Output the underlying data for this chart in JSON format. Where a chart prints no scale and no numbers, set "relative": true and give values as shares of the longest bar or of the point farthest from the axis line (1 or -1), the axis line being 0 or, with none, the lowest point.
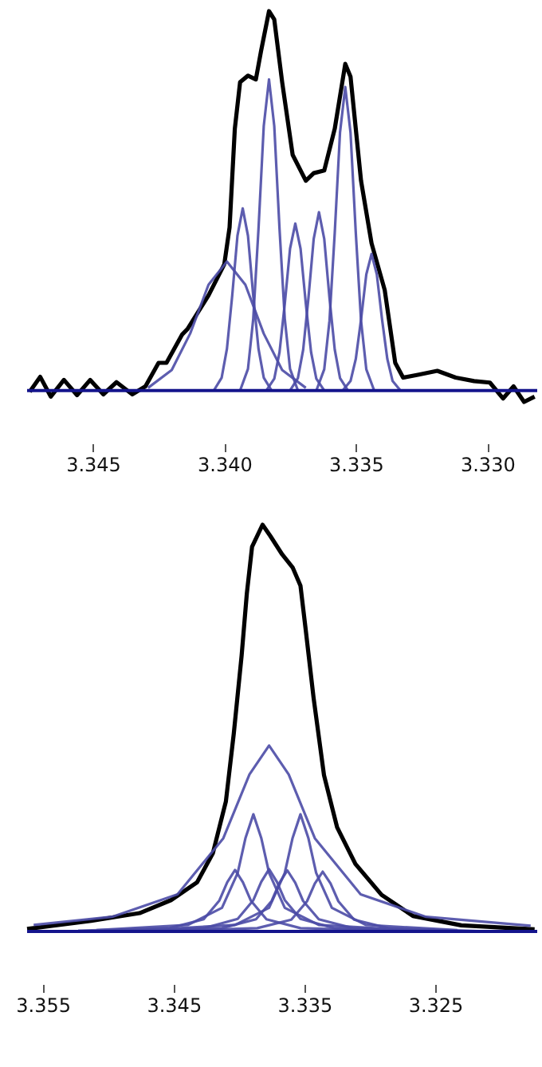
{
  "chart_data": [
    {
      "type": "line",
      "relative": true,
      "xlim": [
        3.3475,
        3.3281
      ],
      "xticks": [
        {
          "value": 3.345,
          "label": "3.345"
        },
        {
          "value": 3.34,
          "label": "3.340"
        },
        {
          "value": 3.335,
          "label": "3.335"
        },
        {
          "value": 3.33,
          "label": "3.330"
        }
      ],
      "ref_lines": [
        {
          "axis": "y",
          "value": 0,
          "color": "#14148c"
        }
      ],
      "series": [
        {
          "color": "#000000",
          "x": [
            3.3474,
            3.347,
            3.3466,
            3.3461,
            3.3456,
            3.3451,
            3.3446,
            3.3441,
            3.3435,
            3.343,
            3.3425,
            3.3422,
            3.3416,
            3.3414,
            3.3406,
            3.34,
            3.3398,
            3.3396,
            3.3394,
            3.3391,
            3.3388,
            3.3386,
            3.3383,
            3.3381,
            3.3378,
            3.3374,
            3.3369,
            3.3366,
            3.3362,
            3.3358,
            3.3354,
            3.3352,
            3.3348,
            3.3344,
            3.3339,
            3.3335,
            3.3332,
            3.3326,
            3.3319,
            3.3312,
            3.3305,
            3.3299,
            3.3294,
            3.329,
            3.3286,
            3.3282
          ],
          "values": [
            -0.003,
            0.036,
            -0.016,
            0.028,
            -0.012,
            0.028,
            -0.01,
            0.022,
            -0.01,
            0.011,
            0.073,
            0.073,
            0.148,
            0.162,
            0.251,
            0.333,
            0.43,
            0.69,
            0.813,
            0.83,
            0.82,
            0.896,
            1.0,
            0.978,
            0.813,
            0.621,
            0.553,
            0.573,
            0.58,
            0.69,
            0.861,
            0.827,
            0.553,
            0.388,
            0.265,
            0.073,
            0.034,
            0.042,
            0.052,
            0.034,
            0.025,
            0.021,
            -0.021,
            0.011,
            -0.03,
            -0.016
          ]
        },
        {
          "color": "#4b4ba6",
          "x": [
            3.3429,
            3.342,
            3.3413,
            3.3406,
            3.3399,
            3.3392,
            3.3385,
            3.3378,
            3.3369
          ],
          "values": [
            0.007,
            0.054,
            0.15,
            0.279,
            0.34,
            0.279,
            0.15,
            0.054,
            0.007
          ]
        },
        {
          "color": "#4b4ba6",
          "x": [
            3.3404,
            3.3401,
            3.3399,
            3.3397,
            3.3395,
            3.3393,
            3.3391,
            3.3389,
            3.3387,
            3.3385,
            3.3382
          ],
          "values": [
            0,
            0.034,
            0.11,
            0.25,
            0.408,
            0.48,
            0.408,
            0.25,
            0.11,
            0.034,
            0
          ]
        },
        {
          "color": "#4b4ba6",
          "x": [
            3.3394,
            3.3391,
            3.3389,
            3.3387,
            3.3385,
            3.3383,
            3.3381,
            3.3379,
            3.3377,
            3.3375,
            3.3372
          ],
          "values": [
            0,
            0.057,
            0.189,
            0.426,
            0.697,
            0.82,
            0.697,
            0.426,
            0.189,
            0.057,
            0
          ]
        },
        {
          "color": "#4b4ba6",
          "x": [
            3.3384,
            3.3381,
            3.3379,
            3.3377,
            3.3375,
            3.3373,
            3.3371,
            3.3369,
            3.3367,
            3.3365,
            3.3362
          ],
          "values": [
            0,
            0.031,
            0.101,
            0.229,
            0.374,
            0.44,
            0.374,
            0.229,
            0.101,
            0.031,
            0
          ]
        },
        {
          "color": "#4b4ba6",
          "x": [
            3.3375,
            3.3372,
            3.337,
            3.3368,
            3.3366,
            3.3364,
            3.3362,
            3.336,
            3.3358,
            3.3356,
            3.3353
          ],
          "values": [
            0,
            0.033,
            0.108,
            0.244,
            0.4,
            0.47,
            0.4,
            0.244,
            0.108,
            0.033,
            0
          ]
        },
        {
          "color": "#4b4ba6",
          "x": [
            3.3365,
            3.3362,
            3.336,
            3.3358,
            3.3356,
            3.3354,
            3.3352,
            3.335,
            3.3348,
            3.3346,
            3.3343
          ],
          "values": [
            0,
            0.056,
            0.184,
            0.416,
            0.68,
            0.8,
            0.68,
            0.416,
            0.184,
            0.056,
            0
          ]
        },
        {
          "color": "#4b4ba6",
          "x": [
            3.3355,
            3.3352,
            3.335,
            3.3348,
            3.3346,
            3.3344,
            3.3342,
            3.334,
            3.3338,
            3.3336,
            3.3333
          ],
          "values": [
            0,
            0.025,
            0.083,
            0.187,
            0.306,
            0.36,
            0.306,
            0.187,
            0.083,
            0.025,
            0
          ]
        }
      ]
    },
    {
      "type": "line",
      "relative": true,
      "xlim": [
        3.3562,
        3.3172
      ],
      "xticks": [
        {
          "value": 3.355,
          "label": "3.355"
        },
        {
          "value": 3.345,
          "label": "3.345"
        },
        {
          "value": 3.335,
          "label": "3.335"
        },
        {
          "value": 3.325,
          "label": "3.325"
        }
      ],
      "ref_lines": [
        {
          "axis": "y",
          "value": 0,
          "color": "#14148c"
        }
      ],
      "series": [
        {
          "color": "#000000",
          "x": [
            3.3562,
            3.3513,
            3.3476,
            3.3452,
            3.3432,
            3.342,
            3.341,
            3.3404,
            3.3398,
            3.3394,
            3.339,
            3.3382,
            3.3376,
            3.3367,
            3.3359,
            3.3353,
            3.3349,
            3.3343,
            3.3335,
            3.3325,
            3.3311,
            3.3291,
            3.3267,
            3.323,
            3.3174
          ],
          "values": [
            0.006,
            0.026,
            0.045,
            0.077,
            0.121,
            0.192,
            0.32,
            0.486,
            0.678,
            0.831,
            0.946,
            1.0,
            0.972,
            0.927,
            0.895,
            0.85,
            0.742,
            0.575,
            0.384,
            0.256,
            0.166,
            0.09,
            0.038,
            0.015,
            0.005
          ]
        },
        {
          "color": "#4b4ba6",
          "x": [
            3.3557,
            3.3497,
            3.3447,
            3.3412,
            3.3392,
            3.3377,
            3.3362,
            3.3342,
            3.3307,
            3.3257,
            3.3177
          ],
          "values": [
            0.016,
            0.036,
            0.091,
            0.229,
            0.386,
            0.457,
            0.386,
            0.229,
            0.091,
            0.036,
            0.014
          ]
        },
        {
          "color": "#4b4ba6",
          "x": [
            3.3509,
            3.3439,
            3.3413,
            3.3401,
            3.3395,
            3.3389,
            3.3383,
            3.3377,
            3.3365,
            3.3339,
            3.3269
          ],
          "values": [
            0.003,
            0.016,
            0.058,
            0.144,
            0.23,
            0.288,
            0.23,
            0.144,
            0.058,
            0.016,
            0.003
          ]
        },
        {
          "color": "#4b4ba6",
          "x": [
            3.3473,
            3.3403,
            3.3377,
            3.3365,
            3.3359,
            3.3353,
            3.3347,
            3.3341,
            3.3329,
            3.3303,
            3.3233
          ],
          "values": [
            0.003,
            0.016,
            0.058,
            0.144,
            0.23,
            0.288,
            0.23,
            0.144,
            0.058,
            0.016,
            0.003
          ]
        },
        {
          "color": "#4b4ba6",
          "x": [
            3.3523,
            3.3453,
            3.3427,
            3.3415,
            3.3409,
            3.3403,
            3.3397,
            3.3391,
            3.3379,
            3.3353,
            3.3283
          ],
          "values": [
            0.002,
            0.008,
            0.03,
            0.076,
            0.121,
            0.151,
            0.121,
            0.076,
            0.03,
            0.008,
            0.002
          ]
        },
        {
          "color": "#4b4ba6",
          "x": [
            3.3497,
            3.3427,
            3.3401,
            3.3389,
            3.3383,
            3.3377,
            3.3371,
            3.3365,
            3.3353,
            3.3327,
            3.3257
          ],
          "values": [
            0.002,
            0.008,
            0.031,
            0.077,
            0.122,
            0.153,
            0.122,
            0.077,
            0.031,
            0.008,
            0.002
          ]
        },
        {
          "color": "#4b4ba6",
          "x": [
            3.3483,
            3.3413,
            3.3387,
            3.3375,
            3.3369,
            3.3363,
            3.3357,
            3.3351,
            3.3339,
            3.3313,
            3.3243
          ],
          "values": [
            0.002,
            0.008,
            0.03,
            0.075,
            0.12,
            0.15,
            0.12,
            0.075,
            0.03,
            0.008,
            0.002
          ]
        },
        {
          "color": "#4b4ba6",
          "x": [
            3.3456,
            3.3386,
            3.336,
            3.3348,
            3.3342,
            3.3336,
            3.333,
            3.3324,
            3.3312,
            3.3286,
            3.3216
          ],
          "values": [
            0.001,
            0.008,
            0.029,
            0.074,
            0.118,
            0.147,
            0.118,
            0.074,
            0.029,
            0.008,
            0.001
          ]
        }
      ]
    }
  ]
}
